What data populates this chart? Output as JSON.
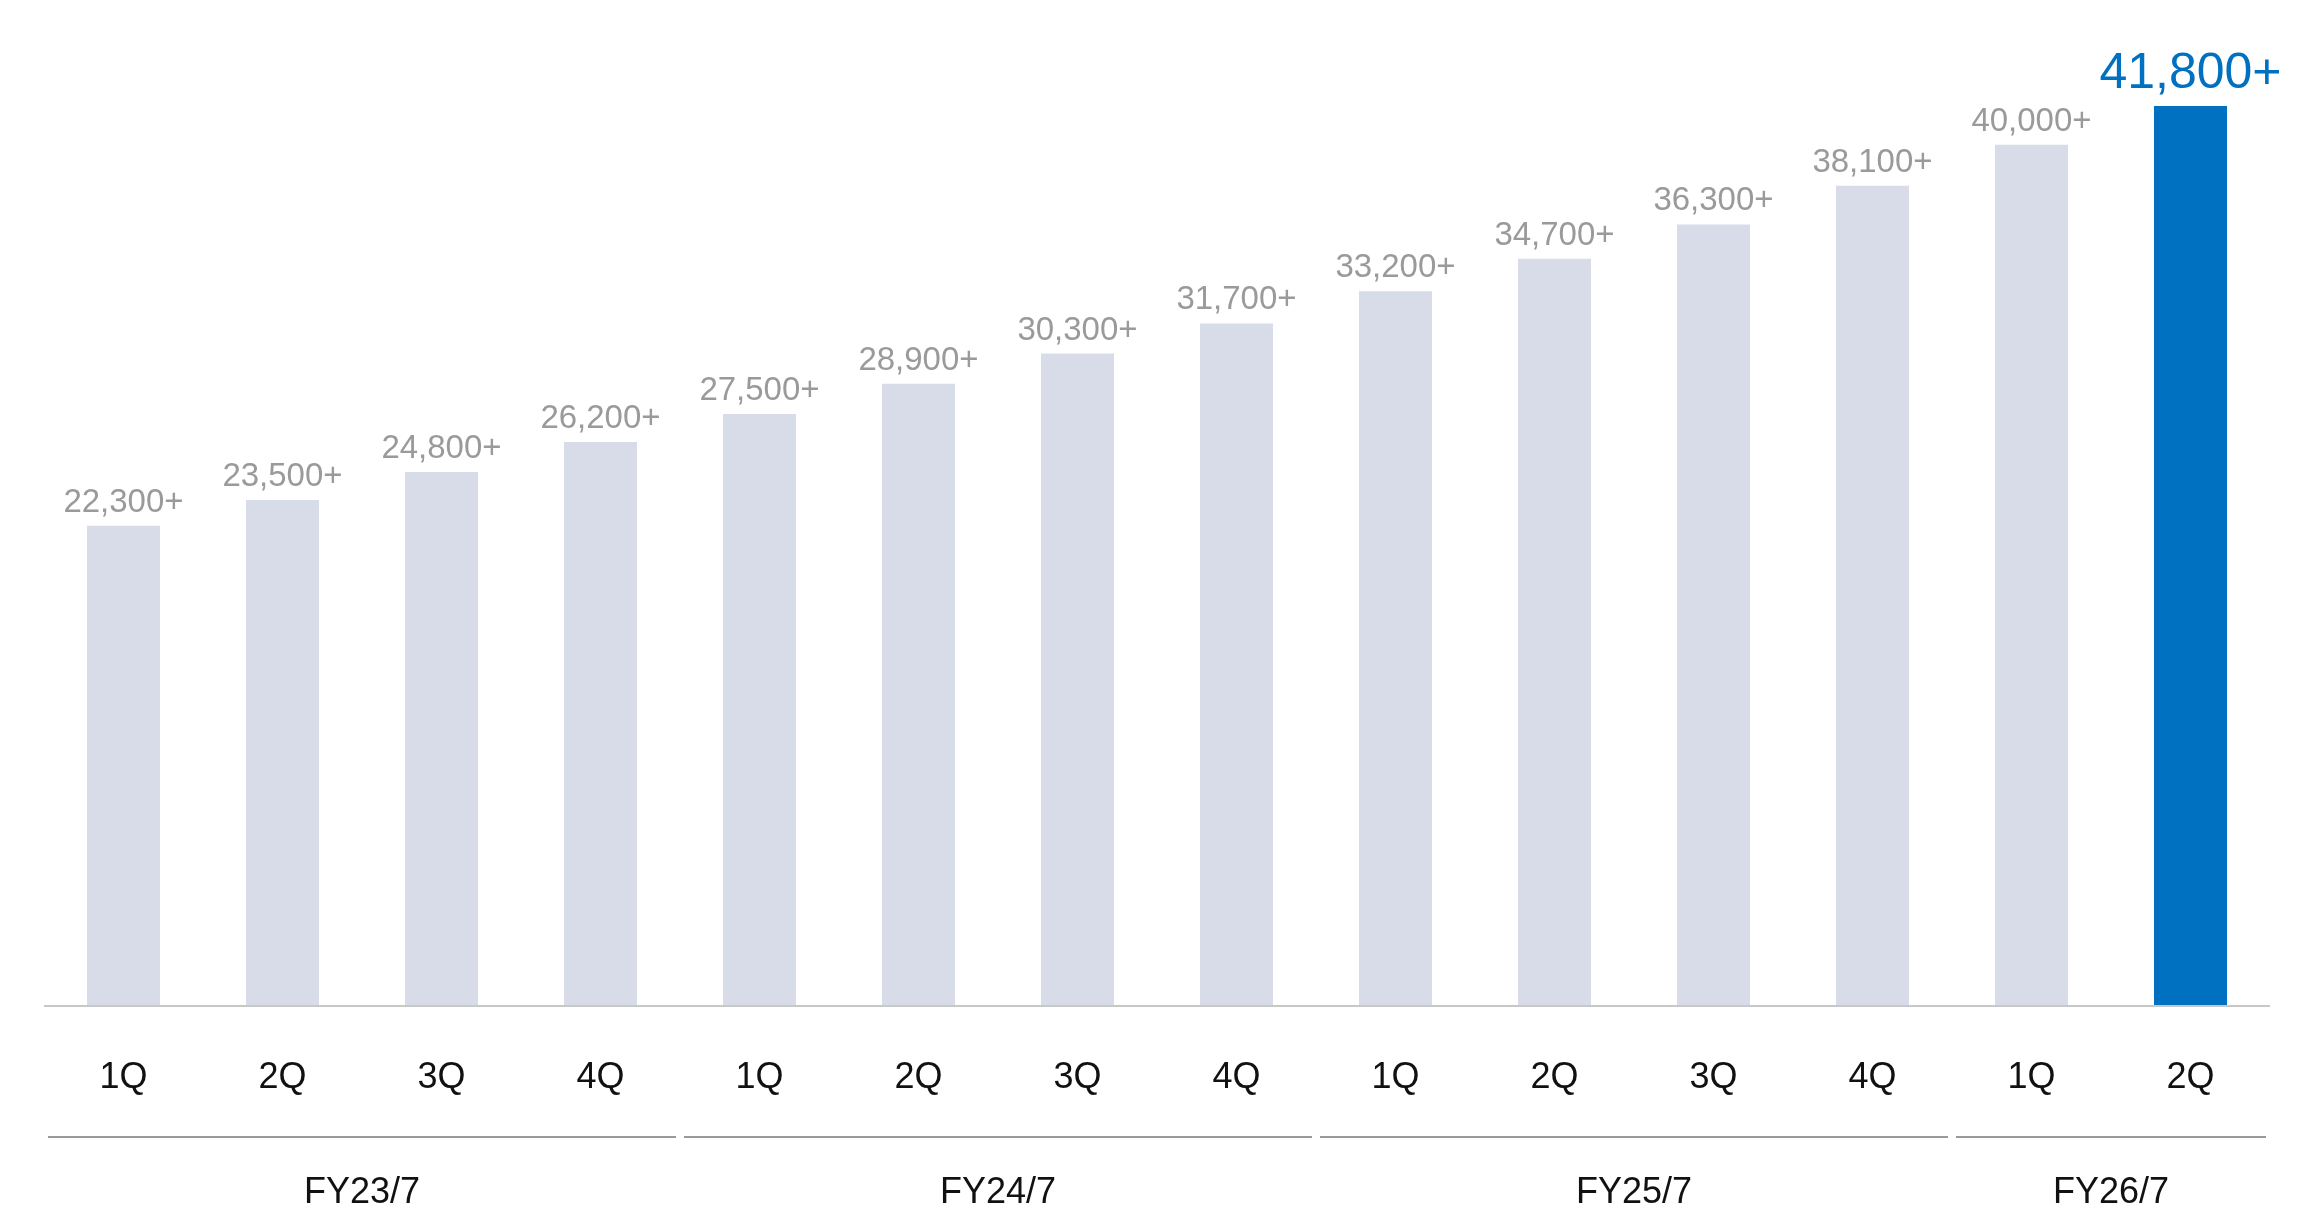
{
  "chart_data": {
    "type": "bar",
    "categories": [
      "1Q",
      "2Q",
      "3Q",
      "4Q",
      "1Q",
      "2Q",
      "3Q",
      "4Q",
      "1Q",
      "2Q",
      "3Q",
      "4Q",
      "1Q",
      "2Q"
    ],
    "values": [
      22300,
      23500,
      24800,
      26200,
      27500,
      28900,
      30300,
      31700,
      33200,
      34700,
      36300,
      38100,
      40000,
      41800
    ],
    "value_labels": [
      "22,300+",
      "23,500+",
      "24,800+",
      "26,200+",
      "27,500+",
      "28,900+",
      "30,300+",
      "31,700+",
      "33,200+",
      "34,700+",
      "36,300+",
      "38,100+",
      "40,000+",
      "41,800+"
    ],
    "colors": [
      "#d8dce9",
      "#d8dce9",
      "#d8dce9",
      "#d8dce9",
      "#d8dce9",
      "#d8dce9",
      "#d8dce9",
      "#d8dce9",
      "#d8dce9",
      "#d8dce9",
      "#d8dce9",
      "#d8dce9",
      "#d8dce9",
      "#0070c0"
    ],
    "annotations": [
      "FY23/7",
      "FY24/7",
      "FY25/7",
      "FY26/7"
    ],
    "grid": false,
    "legend": false
  }
}
